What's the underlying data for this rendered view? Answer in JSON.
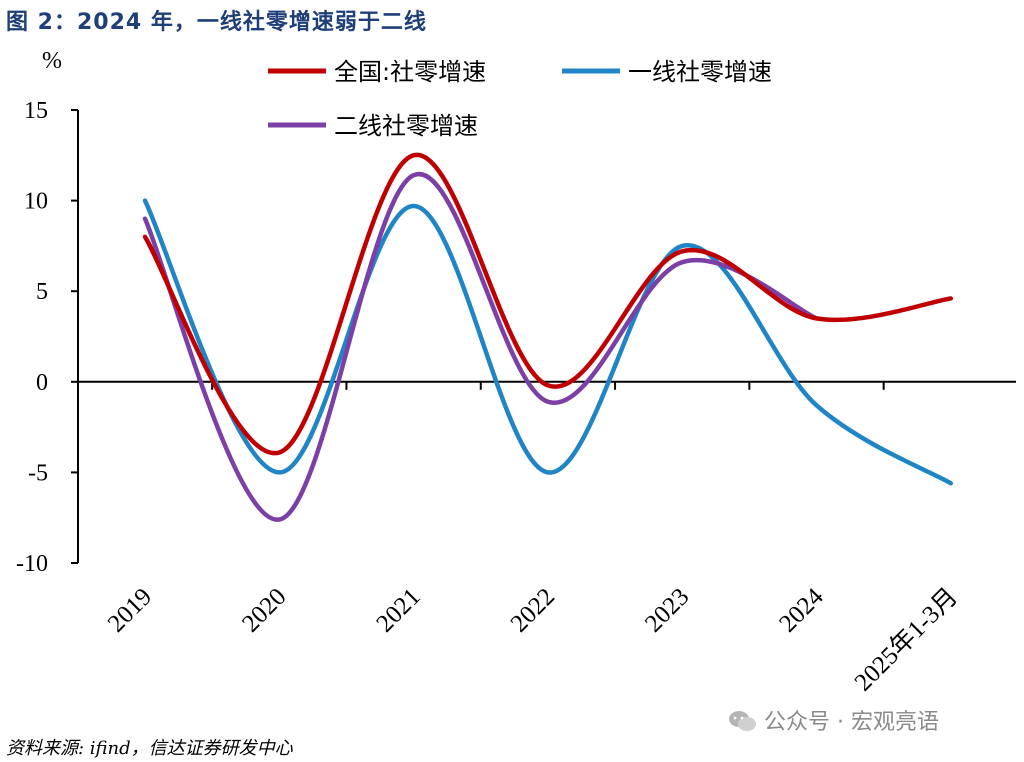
{
  "title": "图 2：2024 年，一线社零增速弱于二线",
  "source": "资料来源: ifind，信达证券研发中心",
  "watermark": "公众号 · 宏观亮语",
  "chart_data": {
    "type": "line",
    "unit_label": "%",
    "categories": [
      "2019",
      "2020",
      "2021",
      "2022",
      "2023",
      "2024",
      "2025年1-3月"
    ],
    "ylim": [
      -10,
      15
    ],
    "yticks": [
      -10,
      -5,
      0,
      5,
      10,
      15
    ],
    "grid": false,
    "legend_position": "top",
    "smooth": true,
    "series": [
      {
        "name": "全国:社零增速",
        "color": "#c00000",
        "values": [
          8.0,
          -3.9,
          12.5,
          -0.2,
          7.2,
          3.5,
          4.6
        ]
      },
      {
        "name": "一线社零增速",
        "color": "#1f85c7",
        "values": [
          10.0,
          -5.0,
          9.7,
          -5.0,
          7.5,
          -1.3,
          -5.6
        ]
      },
      {
        "name": "二线社零增速",
        "color": "#7b3fa6",
        "values": [
          9.0,
          -7.6,
          11.4,
          -1.1,
          6.6,
          3.5,
          null
        ]
      }
    ]
  }
}
